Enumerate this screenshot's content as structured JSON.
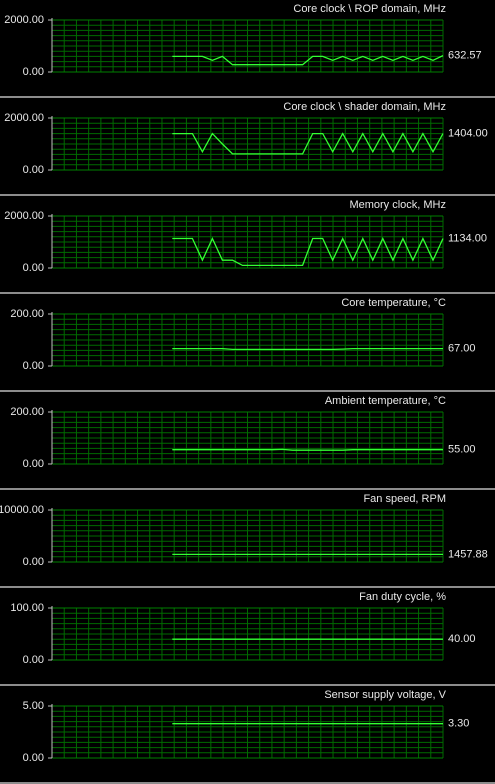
{
  "chart_data": [
    {
      "type": "line",
      "title": "Core clock \\ ROP domain, MHz",
      "color": "#33ff33",
      "grid": true,
      "ylim": [
        0,
        2000
      ],
      "yticks": [
        {
          "value": 0,
          "label": "0.00"
        },
        {
          "value": 2000,
          "label": "2000.00"
        }
      ],
      "values": [
        null,
        null,
        null,
        null,
        null,
        null,
        null,
        null,
        null,
        null,
        null,
        null,
        600,
        600,
        600,
        600,
        450,
        600,
        280,
        280,
        280,
        280,
        280,
        280,
        280,
        280,
        600,
        600,
        450,
        600,
        450,
        600,
        450,
        600,
        450,
        600,
        450,
        600,
        450,
        632.57
      ],
      "value_labels": [
        null,
        null,
        null,
        null,
        null,
        null,
        null,
        null,
        null,
        null,
        null,
        null,
        null,
        null,
        null,
        null,
        null,
        null,
        null,
        null,
        null,
        null,
        null,
        null,
        null,
        null,
        null,
        null,
        null,
        null,
        null,
        null,
        null,
        null,
        null,
        null,
        null,
        null,
        null,
        "632.57"
      ]
    },
    {
      "type": "line",
      "title": "Core clock \\ shader domain, MHz",
      "color": "#33ff33",
      "grid": true,
      "ylim": [
        0,
        2000
      ],
      "yticks": [
        {
          "value": 0,
          "label": "0.00"
        },
        {
          "value": 2000,
          "label": "2000.00"
        }
      ],
      "values": [
        null,
        null,
        null,
        null,
        null,
        null,
        null,
        null,
        null,
        null,
        null,
        null,
        1400,
        1400,
        1400,
        700,
        1400,
        1000,
        620,
        620,
        620,
        620,
        620,
        620,
        620,
        620,
        1400,
        1400,
        700,
        1400,
        700,
        1400,
        700,
        1400,
        700,
        1400,
        700,
        1400,
        700,
        1404
      ],
      "value_labels": [
        null,
        null,
        null,
        null,
        null,
        null,
        null,
        null,
        null,
        null,
        null,
        null,
        null,
        null,
        null,
        null,
        null,
        null,
        null,
        null,
        null,
        null,
        null,
        null,
        null,
        null,
        null,
        null,
        null,
        null,
        null,
        null,
        null,
        null,
        null,
        null,
        null,
        null,
        null,
        "1404.00"
      ]
    },
    {
      "type": "line",
      "title": "Memory clock, MHz",
      "color": "#33ff33",
      "grid": true,
      "ylim": [
        0,
        2000
      ],
      "yticks": [
        {
          "value": 0,
          "label": "0.00"
        },
        {
          "value": 2000,
          "label": "2000.00"
        }
      ],
      "values": [
        null,
        null,
        null,
        null,
        null,
        null,
        null,
        null,
        null,
        null,
        null,
        null,
        1134,
        1134,
        1134,
        300,
        1134,
        300,
        300,
        100,
        100,
        100,
        100,
        100,
        100,
        100,
        1134,
        1134,
        300,
        1134,
        300,
        1134,
        300,
        1134,
        300,
        1134,
        300,
        1134,
        300,
        1134
      ],
      "value_labels": [
        null,
        null,
        null,
        null,
        null,
        null,
        null,
        null,
        null,
        null,
        null,
        null,
        null,
        null,
        null,
        null,
        null,
        null,
        null,
        null,
        null,
        null,
        null,
        null,
        null,
        null,
        null,
        null,
        null,
        null,
        null,
        null,
        null,
        null,
        null,
        null,
        null,
        null,
        null,
        "1134.00"
      ]
    },
    {
      "type": "line",
      "title": "Core temperature, °C",
      "color": "#33ff33",
      "grid": true,
      "ylim": [
        0,
        200
      ],
      "yticks": [
        {
          "value": 0,
          "label": "0.00"
        },
        {
          "value": 200,
          "label": "200.00"
        }
      ],
      "values": [
        null,
        null,
        null,
        null,
        null,
        null,
        null,
        null,
        null,
        null,
        null,
        null,
        67,
        67,
        67,
        67,
        67,
        67,
        64,
        64,
        64,
        64,
        64,
        64,
        64,
        64,
        64,
        64,
        64,
        65,
        67,
        67,
        67,
        67,
        67,
        67,
        67,
        67,
        67,
        67
      ],
      "value_labels": [
        null,
        null,
        null,
        null,
        null,
        null,
        null,
        null,
        null,
        null,
        null,
        null,
        null,
        null,
        null,
        null,
        null,
        null,
        null,
        null,
        null,
        null,
        null,
        null,
        null,
        null,
        null,
        null,
        null,
        null,
        null,
        null,
        null,
        null,
        null,
        null,
        null,
        null,
        null,
        "67.00"
      ]
    },
    {
      "type": "line",
      "title": "Ambient temperature, °C",
      "color": "#33ff33",
      "grid": true,
      "ylim": [
        0,
        200
      ],
      "yticks": [
        {
          "value": 0,
          "label": "0.00"
        },
        {
          "value": 200,
          "label": "200.00"
        }
      ],
      "values": [
        null,
        null,
        null,
        null,
        null,
        null,
        null,
        null,
        null,
        null,
        null,
        null,
        55,
        55,
        55,
        55,
        55,
        55,
        55,
        55,
        55,
        55,
        55,
        56,
        53,
        53,
        53,
        53,
        53,
        53,
        55,
        55,
        55,
        55,
        55,
        55,
        55,
        55,
        55,
        55
      ],
      "value_labels": [
        null,
        null,
        null,
        null,
        null,
        null,
        null,
        null,
        null,
        null,
        null,
        null,
        null,
        null,
        null,
        null,
        null,
        null,
        null,
        null,
        null,
        null,
        null,
        null,
        null,
        null,
        null,
        null,
        null,
        null,
        null,
        null,
        null,
        null,
        null,
        null,
        null,
        null,
        null,
        "55.00"
      ]
    },
    {
      "type": "line",
      "title": "Fan speed, RPM",
      "color": "#33ff33",
      "grid": true,
      "ylim": [
        0,
        10000
      ],
      "yticks": [
        {
          "value": 0,
          "label": "0.00"
        },
        {
          "value": 10000,
          "label": "10000.00"
        }
      ],
      "values": [
        null,
        null,
        null,
        null,
        null,
        null,
        null,
        null,
        null,
        null,
        null,
        null,
        1457.88,
        1457.88,
        1457.88,
        1457.88,
        1457.88,
        1457.88,
        1457.88,
        1457.88,
        1457.88,
        1457.88,
        1457.88,
        1457.88,
        1457.88,
        1457.88,
        1457.88,
        1457.88,
        1457.88,
        1457.88,
        1457.88,
        1457.88,
        1457.88,
        1457.88,
        1457.88,
        1457.88,
        1457.88,
        1457.88,
        1457.88,
        1457.88
      ],
      "value_labels": [
        null,
        null,
        null,
        null,
        null,
        null,
        null,
        null,
        null,
        null,
        null,
        null,
        null,
        null,
        null,
        null,
        null,
        null,
        null,
        null,
        null,
        null,
        null,
        null,
        null,
        null,
        null,
        null,
        null,
        null,
        null,
        null,
        null,
        null,
        null,
        null,
        null,
        null,
        null,
        "1457.88"
      ]
    },
    {
      "type": "line",
      "title": "Fan duty cycle, %",
      "color": "#33ff33",
      "grid": true,
      "ylim": [
        0,
        100
      ],
      "yticks": [
        {
          "value": 0,
          "label": "0.00"
        },
        {
          "value": 100,
          "label": "100.00"
        }
      ],
      "values": [
        null,
        null,
        null,
        null,
        null,
        null,
        null,
        null,
        null,
        null,
        null,
        null,
        40,
        40,
        40,
        40,
        40,
        40,
        40,
        40,
        40,
        40,
        40,
        40,
        40,
        40,
        40,
        40,
        40,
        40,
        40,
        40,
        40,
        40,
        40,
        40,
        40,
        40,
        40,
        40
      ],
      "value_labels": [
        null,
        null,
        null,
        null,
        null,
        null,
        null,
        null,
        null,
        null,
        null,
        null,
        null,
        null,
        null,
        null,
        null,
        null,
        null,
        null,
        null,
        null,
        null,
        null,
        null,
        null,
        null,
        null,
        null,
        null,
        null,
        null,
        null,
        null,
        null,
        null,
        null,
        null,
        null,
        "40.00"
      ]
    },
    {
      "type": "line",
      "title": "Sensor supply voltage, V",
      "color": "#33ff33",
      "grid": true,
      "ylim": [
        0,
        5
      ],
      "yticks": [
        {
          "value": 0,
          "label": "0.00"
        },
        {
          "value": 5,
          "label": "5.00"
        }
      ],
      "values": [
        null,
        null,
        null,
        null,
        null,
        null,
        null,
        null,
        null,
        null,
        null,
        null,
        3.3,
        3.3,
        3.3,
        3.3,
        3.3,
        3.3,
        3.3,
        3.3,
        3.3,
        3.3,
        3.3,
        3.3,
        3.3,
        3.3,
        3.3,
        3.3,
        3.3,
        3.3,
        3.3,
        3.3,
        3.3,
        3.3,
        3.3,
        3.3,
        3.3,
        3.3,
        3.3,
        3.3
      ],
      "value_labels": [
        null,
        null,
        null,
        null,
        null,
        null,
        null,
        null,
        null,
        null,
        null,
        null,
        null,
        null,
        null,
        null,
        null,
        null,
        null,
        null,
        null,
        null,
        null,
        null,
        null,
        null,
        null,
        null,
        null,
        null,
        null,
        null,
        null,
        null,
        null,
        null,
        null,
        null,
        null,
        "3.30"
      ]
    }
  ]
}
